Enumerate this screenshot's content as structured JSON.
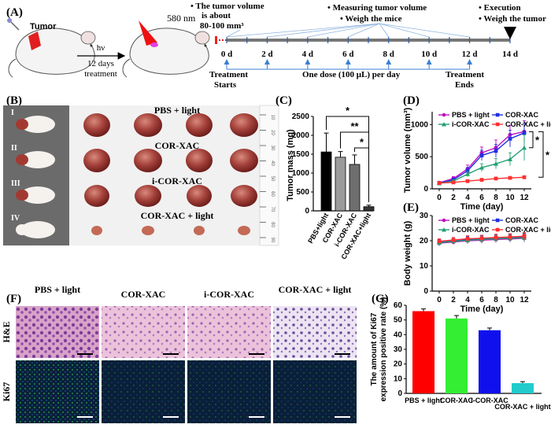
{
  "panel_labels": {
    "A": "(A)",
    "B": "(B)",
    "C": "(C)",
    "D": "(D)",
    "E": "(E)",
    "F": "(F)",
    "G": "(G)"
  },
  "panel_a": {
    "tumor_label": "Tumor",
    "laser_wavelength": "580 nm",
    "arrow_top": "hν",
    "arrow_mid": "12 days",
    "arrow_bottom": "treatment",
    "note_volume_l1": "• The tumor volume",
    "note_volume_l2": "is about",
    "note_volume_l3": "80-100 mm³",
    "note_measure": "• Measuring tumor volume",
    "note_weigh_mice": "• Weigh the mice",
    "note_execution": "• Execution",
    "note_weigh_tumor": "• Weigh the tumor",
    "day_ticks": [
      "0 d",
      "2 d",
      "4 d",
      "6 d",
      "8 d",
      "10 d",
      "12 d",
      "14 d"
    ],
    "treatment_starts_l1": "Treatment",
    "treatment_starts_l2": "Starts",
    "dose_text": "One dose (100 μL) per day",
    "treatment_ends_l1": "Treatment",
    "treatment_ends_l2": "Ends"
  },
  "panel_b": {
    "rows": [
      {
        "roman": "I",
        "label": "PBS + light"
      },
      {
        "roman": "II",
        "label": "COR-XAC"
      },
      {
        "roman": "III",
        "label": "i-COR-XAC"
      },
      {
        "roman": "IV",
        "label": "COR-XAC + light"
      }
    ],
    "ruler_marks": [
      "10",
      "20",
      "30",
      "40",
      "50",
      "60",
      "70",
      "80",
      "90"
    ]
  },
  "panel_f": {
    "columns": [
      "PBS + light",
      "COR-XAC",
      "i-COR-XAC",
      "COR-XAC + light"
    ],
    "row_labels": [
      "H&E",
      "Ki67"
    ]
  },
  "colors": {
    "pbs": "#c010c0",
    "cor": "#2030e0",
    "icor": "#20a070",
    "corlight": "#ff3030",
    "c_bar1": "#000000",
    "c_bar2": "#9a9a9a",
    "c_bar3": "#6e6e6e",
    "c_bar4": "#333333",
    "g_red": "#ff0000",
    "g_green": "#33ee33",
    "g_blue": "#1010ee",
    "g_cyan": "#22cccc"
  },
  "chart_data": [
    {
      "id": "C",
      "type": "bar",
      "ylabel": "Tumor mass (mg)",
      "ylim": [
        0,
        2500
      ],
      "yticks": [
        0,
        500,
        1000,
        1500,
        2000,
        2500
      ],
      "categories": [
        "PBS+light",
        "COR-XAC",
        "i-COR-XAC",
        "COR-XAC+light"
      ],
      "values": [
        1560,
        1420,
        1230,
        110
      ],
      "errors": [
        500,
        150,
        250,
        40
      ],
      "significance": [
        "*",
        "**",
        "*"
      ]
    },
    {
      "id": "D",
      "type": "line",
      "xlabel": "Time (day)",
      "ylabel": "Tumor volume (mm³)",
      "xlim": [
        -1,
        13
      ],
      "ylim": [
        0,
        1200
      ],
      "xticks": [
        0,
        2,
        4,
        6,
        8,
        10,
        12
      ],
      "yticks": [
        0,
        500,
        1000
      ],
      "x": [
        0,
        2,
        4,
        6,
        8,
        10,
        12
      ],
      "series": [
        {
          "name": "PBS + light",
          "values": [
            95,
            160,
            310,
            560,
            640,
            840,
            890
          ],
          "errors": [
            10,
            30,
            60,
            90,
            120,
            150,
            170
          ]
        },
        {
          "name": "COR-XAC",
          "values": [
            90,
            140,
            280,
            520,
            590,
            780,
            870
          ],
          "errors": [
            10,
            25,
            50,
            80,
            100,
            130,
            150
          ]
        },
        {
          "name": "i-COR-XAC",
          "values": [
            85,
            120,
            230,
            330,
            390,
            460,
            640
          ],
          "errors": [
            10,
            20,
            40,
            60,
            80,
            100,
            200
          ]
        },
        {
          "name": "COR-XAC + light",
          "values": [
            90,
            100,
            120,
            140,
            160,
            170,
            180
          ],
          "errors": [
            5,
            8,
            10,
            12,
            15,
            18,
            20
          ]
        }
      ],
      "significance": [
        "*",
        "*"
      ]
    },
    {
      "id": "E",
      "type": "line",
      "xlabel": "Time (day)",
      "ylabel": "Body weight (g)",
      "xlim": [
        -1,
        13
      ],
      "ylim": [
        0,
        30
      ],
      "xticks": [
        0,
        2,
        4,
        6,
        8,
        10,
        12
      ],
      "yticks": [
        0,
        10,
        20,
        30
      ],
      "x": [
        0,
        2,
        4,
        6,
        8,
        10,
        12
      ],
      "series": [
        {
          "name": "PBS + light",
          "values": [
            19.0,
            19.5,
            20.0,
            20.2,
            20.5,
            20.7,
            21.0
          ],
          "errors": [
            1,
            1,
            1.2,
            1.2,
            1.3,
            1.3,
            1.5
          ]
        },
        {
          "name": "COR-XAC",
          "values": [
            19.5,
            20.0,
            20.5,
            20.8,
            21.0,
            21.2,
            21.5
          ],
          "errors": [
            1,
            1,
            1.2,
            1.2,
            1.3,
            1.3,
            1.5
          ]
        },
        {
          "name": "i-COR-XAC",
          "values": [
            19.2,
            19.8,
            20.2,
            20.5,
            20.8,
            21.0,
            21.2
          ],
          "errors": [
            1,
            1,
            1.2,
            1.2,
            1.3,
            1.3,
            1.5
          ]
        },
        {
          "name": "COR-XAC + light",
          "values": [
            19.8,
            20.3,
            20.8,
            21.0,
            21.3,
            21.5,
            21.8
          ],
          "errors": [
            1,
            1,
            1.2,
            1.2,
            1.3,
            1.3,
            1.5
          ]
        }
      ]
    },
    {
      "id": "G",
      "type": "bar",
      "ylabel_line1": "The amount of Ki67",
      "ylabel_line2": "expression positive rate (%)",
      "ylim": [
        0,
        60
      ],
      "yticks": [
        0,
        10,
        20,
        30,
        40,
        50,
        60
      ],
      "categories": [
        "PBS + light",
        "COR-XAC",
        "i-COR-XAC",
        "COR-XAC + light"
      ],
      "values": [
        56,
        51,
        43,
        7
      ],
      "errors": [
        1.5,
        2,
        1.5,
        1
      ]
    }
  ]
}
